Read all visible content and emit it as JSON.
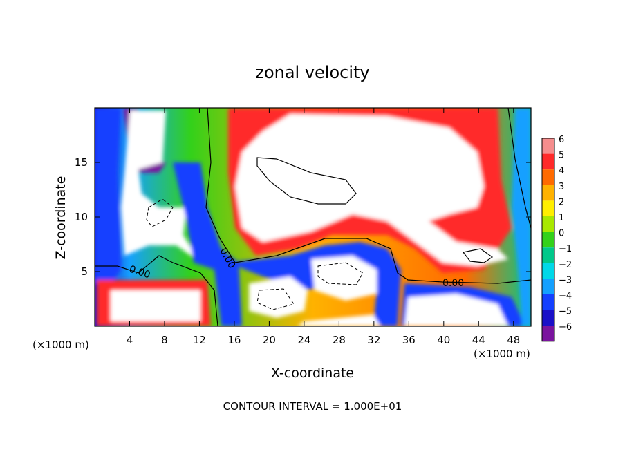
{
  "chart_data": {
    "type": "heatmap",
    "title": "zonal velocity",
    "xlabel": "X-coordinate",
    "ylabel": "Z-coordinate",
    "x_unit_label": "(×1000 m)",
    "x_unit_label_right": "(×1000 m)",
    "xlim": [
      0,
      50
    ],
    "ylim": [
      0,
      20
    ],
    "x_ticks": [
      4,
      8,
      12,
      16,
      20,
      24,
      28,
      32,
      36,
      40,
      44,
      48
    ],
    "y_ticks": [
      5,
      10,
      15
    ],
    "colorbar": {
      "levels": [
        6,
        5,
        4,
        3,
        2,
        1,
        0,
        -1,
        -2,
        -3,
        -4,
        -5,
        -6
      ],
      "colors": [
        "#f58d8d",
        "#ff2a2a",
        "#ff6a00",
        "#ffb200",
        "#ffee00",
        "#a8e800",
        "#33d11a",
        "#00c88a",
        "#00d8e8",
        "#14a0ff",
        "#1440ff",
        "#1a10c8",
        "#7a149e"
      ]
    },
    "contour_labels": [
      "0.00",
      "0.00",
      "0.00"
    ],
    "footnote": "CONTOUR INTERVAL = 1.000E+01"
  }
}
